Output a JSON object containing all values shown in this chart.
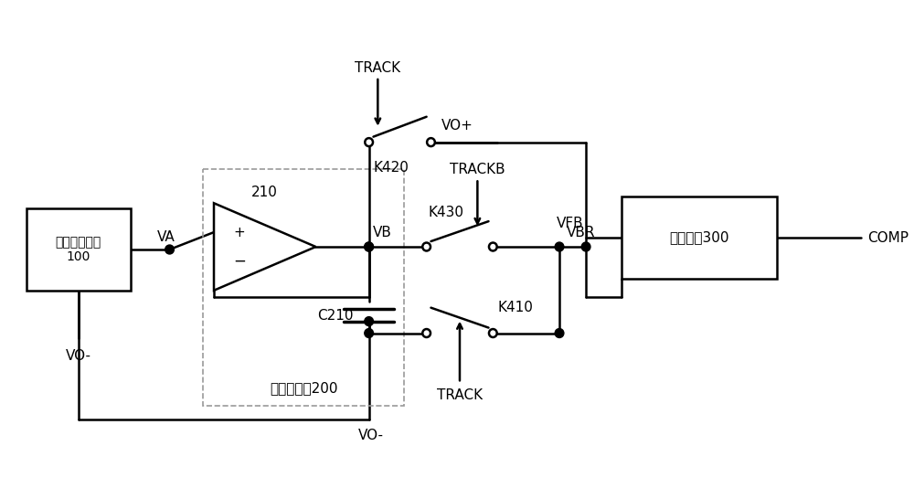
{
  "bg_color": "#ffffff",
  "line_color": "#000000",
  "dashed_color": "#999999",
  "fig_width": 10.0,
  "fig_height": 5.46,
  "labels": {
    "dac_box": "数模转换电路\n100",
    "opamp_label": "210",
    "cap_label": "C210",
    "slew_label": "斜率缓冲器200",
    "opamp300_label": "第一运放300",
    "VA": "VA",
    "VB": "VB",
    "VBR": "VBR",
    "VO_minus_left": "VO-",
    "VO_minus_bottom": "VO-",
    "VO_plus": "VO+",
    "VFB": "VFB",
    "COMP": "COMP",
    "K420": "K420",
    "K430": "K430",
    "K410": "K410",
    "TRACK_top": "TRACK",
    "TRACKB": "TRACKB",
    "TRACK_bottom": "TRACK"
  }
}
